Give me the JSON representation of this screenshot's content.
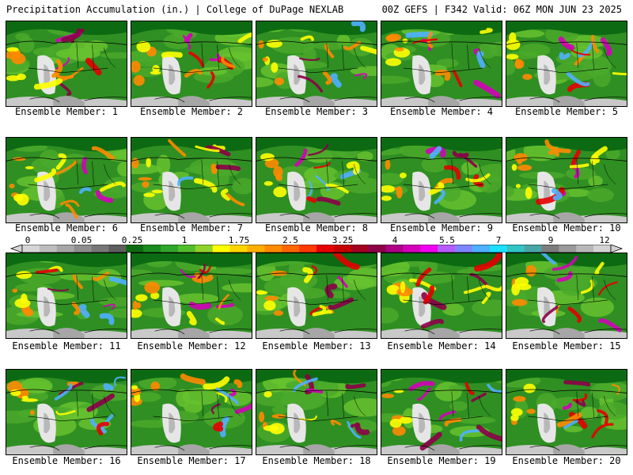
{
  "header": {
    "title": "Precipitation Accumulation (in.) | College of DuPage NEXLAB",
    "run_info": "00Z GEFS | F342 Valid: 06Z MON JUN 23 2025"
  },
  "members": [
    {
      "label": "Ensemble Member: 1"
    },
    {
      "label": "Ensemble Member: 2"
    },
    {
      "label": "Ensemble Member: 3"
    },
    {
      "label": "Ensemble Member: 4"
    },
    {
      "label": "Ensemble Member: 5"
    },
    {
      "label": "Ensemble Member: 6"
    },
    {
      "label": "Ensemble Member: 7"
    },
    {
      "label": "Ensemble Member: 8"
    },
    {
      "label": "Ensemble Member: 9"
    },
    {
      "label": "Ensemble Member: 10"
    },
    {
      "label": "Ensemble Member: 11"
    },
    {
      "label": "Ensemble Member: 12"
    },
    {
      "label": "Ensemble Member: 13"
    },
    {
      "label": "Ensemble Member: 14"
    },
    {
      "label": "Ensemble Member: 15"
    },
    {
      "label": "Ensemble Member: 16"
    },
    {
      "label": "Ensemble Member: 17"
    },
    {
      "label": "Ensemble Member: 18"
    },
    {
      "label": "Ensemble Member: 19"
    },
    {
      "label": "Ensemble Member: 20"
    }
  ],
  "colorbar": {
    "tick_labels": [
      "0",
      "0.05",
      "0.25",
      "1",
      "1.75",
      "2.5",
      "3.25",
      "4",
      "5.5",
      "7",
      "9",
      "12"
    ],
    "colors": [
      "#d6d6d6",
      "#bdbdbd",
      "#a6a6a6",
      "#8e8e8e",
      "#777777",
      "#5e5e5e",
      "#0c6b12",
      "#1b8a1e",
      "#2fa52a",
      "#52bd2c",
      "#8fd22a",
      "#ffff00",
      "#ffd400",
      "#ffae00",
      "#ff8a00",
      "#ff6600",
      "#ff3a00",
      "#e60000",
      "#c40000",
      "#a30021",
      "#8c0048",
      "#ad0087",
      "#d400b9",
      "#f000f0",
      "#b45cff",
      "#7d86ff",
      "#4fb0ff",
      "#1ce0ff",
      "#33c4c4",
      "#4aa6a6",
      "#7c7c7c",
      "#9a9a9a",
      "#b8b8b8",
      "#d3d3d3"
    ]
  },
  "palette": {
    "ocean": "#c9c9c9",
    "land": "#2f8f22",
    "dry_green": "#66c22e",
    "yellow": "#ffff00",
    "orange": "#ff8a00",
    "red": "#e60000",
    "dark_red": "#8c0048",
    "magenta": "#d400b9",
    "blue": "#4fb0ff",
    "gray_dark": "#6e6e6e",
    "gray_light": "#e6e6e6"
  }
}
